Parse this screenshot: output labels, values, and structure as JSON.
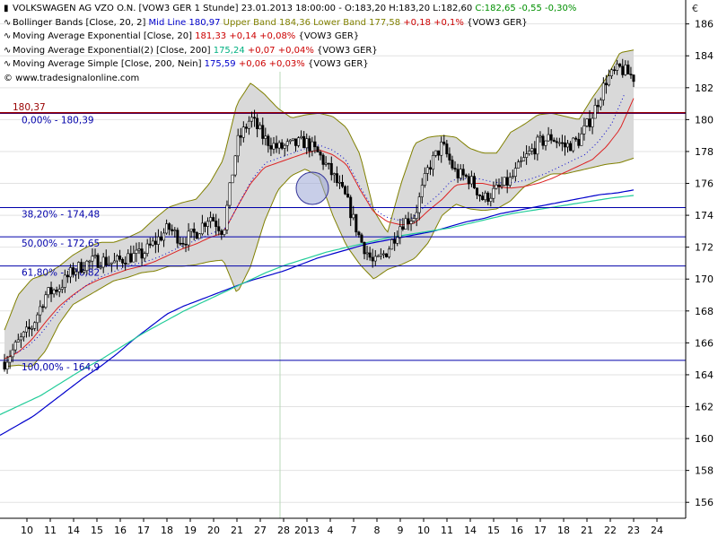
{
  "header": {
    "rows": [
      [
        {
          "text": "VOLKSWAGEN AG VZO O.N. [VOW3 GER  1 Stunde] 23.01.2013 18:00:00 - O:183,20 H:183,20 L:182,60 ",
          "color": "#000000"
        },
        {
          "text": "C:182,65 -0,55 -0,30%",
          "color": "#009000"
        }
      ],
      [
        {
          "text": "Bollinger Bands [Close, 20, 2] ",
          "color": "#000000"
        },
        {
          "text": "Mid Line 180,97 ",
          "color": "#0000cc"
        },
        {
          "text": "Upper Band 184,36 Lower Band 177,58 ",
          "color": "#808000"
        },
        {
          "text": "+0,18 +0,1% ",
          "color": "#cc0000"
        },
        {
          "text": "{VOW3 GER}",
          "color": "#000000"
        }
      ],
      [
        {
          "text": "Moving Average Exponential [Close, 20] ",
          "color": "#000000"
        },
        {
          "text": "181,33 +0,14 +0,08% ",
          "color": "#cc0000"
        },
        {
          "text": "{VOW3 GER}",
          "color": "#000000"
        }
      ],
      [
        {
          "text": "Moving Average Exponential(2) [Close, 200] ",
          "color": "#000000"
        },
        {
          "text": "175,24 ",
          "color": "#00b080"
        },
        {
          "text": "+0,07 +0,04% ",
          "color": "#cc0000"
        },
        {
          "text": "{VOW3 GER}",
          "color": "#000000"
        }
      ],
      [
        {
          "text": "Moving Average Simple [Close, 200, Nein] ",
          "color": "#000000"
        },
        {
          "text": "175,59 ",
          "color": "#0000cc"
        },
        {
          "text": "+0,06 +0,03% ",
          "color": "#cc0000"
        },
        {
          "text": "{VOW3 GER}",
          "color": "#000000"
        }
      ]
    ],
    "copyright": "© www.tradesignalonline.com"
  },
  "pane_icon": "€",
  "chart_data": {
    "type": "candlestick",
    "title": "VOLKSWAGEN AG VZO O.N. [VOW3 GER  1 Stunde]",
    "ylim": [
      155,
      187.5
    ],
    "y_ticks": [
      156,
      158,
      160,
      162,
      164,
      166,
      168,
      170,
      172,
      174,
      176,
      178,
      180,
      182,
      184,
      186
    ],
    "x_labels": [
      "10",
      "11",
      "14",
      "15",
      "16",
      "17",
      "18",
      "19",
      "20",
      "21",
      "27",
      "28",
      "2013",
      "4",
      "7",
      "8",
      "9",
      "10",
      "11",
      "14",
      "15",
      "16",
      "17",
      "18",
      "21",
      "22",
      "23",
      "24"
    ],
    "grid": true,
    "colors": {
      "bollinger_fill": "#d9d9d9",
      "bollinger_line": "#808000",
      "ema20": "#dd2222",
      "ema200": "#22cc99",
      "sma200": "#0000cc",
      "fib": "#0000aa",
      "resistance": "#990000",
      "candle": "#000000"
    },
    "close_anchors": [
      164.8,
      166,
      167,
      169,
      169.5,
      170.5,
      171,
      171.2,
      171,
      171.4,
      171.5,
      172.3,
      173.2,
      172.4,
      172.9,
      174,
      173,
      178.5,
      180.1,
      178.8,
      178.2,
      178.4,
      178.6,
      177.8,
      176.5,
      175,
      172.5,
      170.9,
      171.8,
      173.5,
      174,
      177,
      178.4,
      176.6,
      176.3,
      175,
      175.6,
      176.2,
      177.5,
      178.5,
      178.9,
      178.3,
      178.7,
      180.3,
      182.5,
      183.2,
      182.65
    ],
    "bollinger_upper": [
      166.8,
      169,
      170,
      170.3,
      170.8,
      171.5,
      172,
      172.3,
      172.3,
      172.6,
      173,
      173.8,
      174.5,
      174.8,
      175,
      176,
      177.5,
      181,
      182.3,
      181.6,
      180.7,
      180.1,
      180.3,
      180.4,
      180.2,
      179.5,
      177.8,
      174.3,
      172.9,
      176,
      178.5,
      178.9,
      179,
      178.9,
      178.2,
      177.9,
      177.9,
      179.2,
      179.7,
      180.3,
      180.4,
      180.2,
      180,
      181.4,
      182.6,
      184.2,
      184.36
    ],
    "bollinger_lower": [
      164.5,
      164.6,
      164.5,
      165.5,
      167.2,
      168.4,
      168.9,
      169.4,
      169.9,
      170.1,
      170.4,
      170.5,
      170.8,
      170.8,
      170.9,
      171.1,
      171.2,
      169.1,
      170.8,
      173.6,
      175.6,
      176.5,
      176.9,
      176.4,
      174,
      172.1,
      170.9,
      170,
      170.6,
      170.9,
      171.3,
      172.3,
      174,
      174.7,
      174.4,
      174.3,
      174.4,
      174.9,
      175.8,
      176.2,
      176.6,
      176.6,
      176.8,
      177,
      177.2,
      177.3,
      177.58
    ],
    "ema20": [
      165,
      165.4,
      166.2,
      167.3,
      168.3,
      169,
      169.6,
      170,
      170.3,
      170.6,
      170.8,
      171.1,
      171.5,
      171.9,
      172.2,
      172.6,
      172.9,
      174.5,
      176,
      177,
      177.3,
      177.6,
      177.9,
      178.1,
      177.8,
      177.2,
      175.6,
      174.2,
      173.6,
      173.4,
      173.5,
      174.3,
      175,
      175.9,
      176,
      176,
      175.8,
      175.7,
      175.8,
      176,
      176.3,
      176.7,
      177.1,
      177.5,
      178.3,
      179.4,
      181.33
    ],
    "sma200": [
      160.2,
      160.8,
      161.4,
      162.2,
      163,
      163.8,
      164.5,
      165.3,
      166.2,
      167,
      167.8,
      168.3,
      168.7,
      169.1,
      169.5,
      169.9,
      170.2,
      170.5,
      170.9,
      171.3,
      171.6,
      171.9,
      172.2,
      172.4,
      172.6,
      172.8,
      173,
      173.3,
      173.6,
      173.8,
      174.1,
      174.3,
      174.5,
      174.7,
      174.9,
      175.1,
      175.3,
      175.4,
      175.59
    ],
    "ema200": [
      161.5,
      162.1,
      162.7,
      163.5,
      164.3,
      165,
      165.8,
      166.6,
      167.3,
      168,
      168.6,
      169.2,
      169.8,
      170.4,
      170.9,
      171.3,
      171.7,
      172,
      172.3,
      172.6,
      172.8,
      173,
      173.2,
      173.5,
      173.8,
      174.1,
      174.3,
      174.5,
      174.7,
      174.9,
      175.1,
      175.24
    ],
    "fibonacci_levels": [
      {
        "label": "0,00% - 180,39",
        "value": 180.39
      },
      {
        "label": "38,20% - 174,48",
        "value": 174.48
      },
      {
        "label": "50,00% - 172,65",
        "value": 172.65
      },
      {
        "label": "61,80% - 170,82",
        "value": 170.82
      },
      {
        "label": "100,00% - 164,9",
        "value": 164.9
      }
    ],
    "resistance": {
      "label": "180,37",
      "value": 180.37
    }
  }
}
